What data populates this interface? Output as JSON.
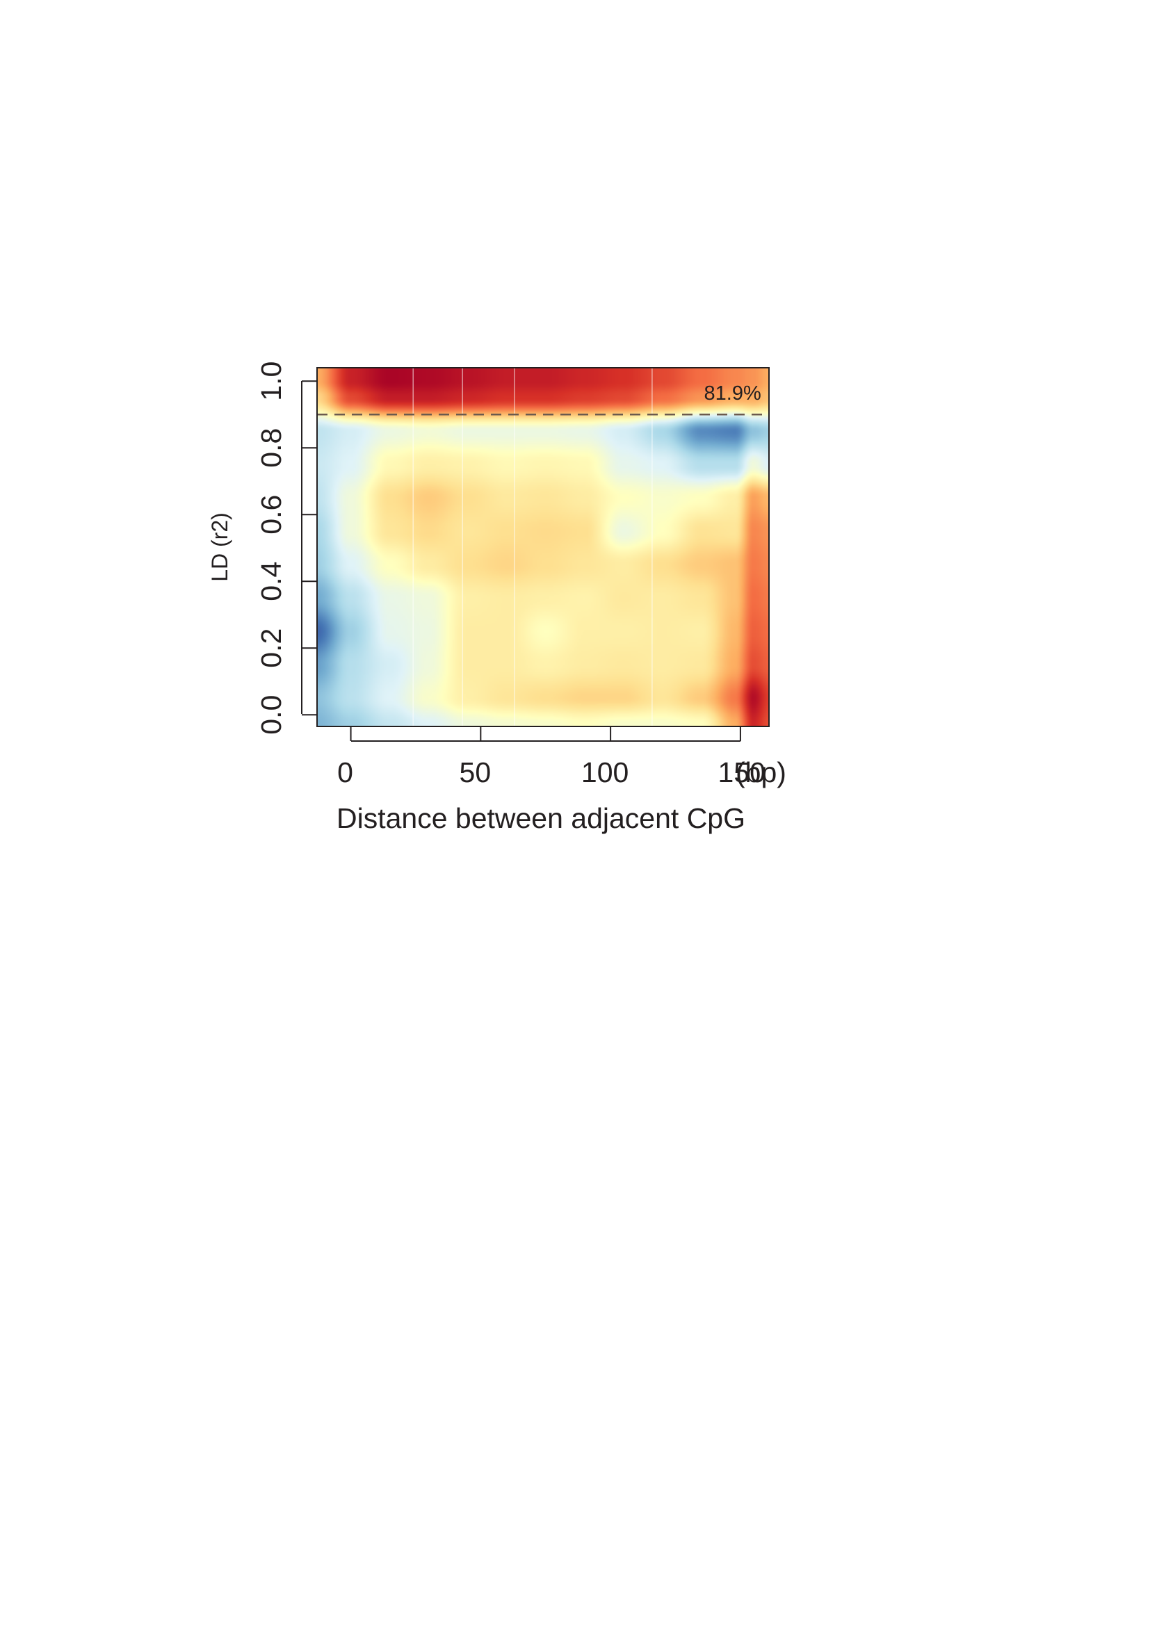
{
  "chart_data": {
    "type": "heatmap",
    "title": "",
    "xlabel": "Distance between adjacent CpG",
    "ylabel": "LD (r2)",
    "x_unit_label": "(bp)",
    "xlim": [
      -13,
      161
    ],
    "ylim": [
      -0.035,
      1.04
    ],
    "x_ticks": [
      0,
      50,
      100,
      150
    ],
    "x_tick_labels": [
      "0",
      "50",
      "100",
      "150"
    ],
    "y_ticks": [
      0.0,
      0.2,
      0.4,
      0.6,
      0.8,
      1.0
    ],
    "y_tick_labels": [
      "0.0",
      "0.2",
      "0.4",
      "0.6",
      "0.8",
      "1.0"
    ],
    "threshold_line": {
      "y": 0.9,
      "style": "dashed",
      "color": "#6b5a4e"
    },
    "annotation": {
      "text": "81.9%",
      "x": 158,
      "y": 0.965
    },
    "vertical_gridlines_x": [
      24,
      43,
      63,
      116
    ],
    "grid": false,
    "colorscale": [
      "#313695",
      "#4575b4",
      "#74add1",
      "#abd9e9",
      "#e0f3f8",
      "#ffffbf",
      "#fee090",
      "#fdae61",
      "#f46d43",
      "#d73027",
      "#a50026"
    ],
    "colorscale_note": "density, low (blue) to high (red); no colorbar shown",
    "density_grid": {
      "x": [
        -13,
        0,
        15,
        30,
        45,
        60,
        75,
        90,
        105,
        120,
        135,
        148,
        155,
        161
      ],
      "y": [
        -0.03,
        0.05,
        0.15,
        0.25,
        0.35,
        0.45,
        0.55,
        0.65,
        0.75,
        0.85,
        0.95,
        1.0
      ],
      "z": [
        [
          0.22,
          0.28,
          0.35,
          0.4,
          0.45,
          0.47,
          0.48,
          0.5,
          0.48,
          0.48,
          0.5,
          0.7,
          0.92,
          0.85
        ],
        [
          0.25,
          0.33,
          0.4,
          0.48,
          0.55,
          0.58,
          0.6,
          0.62,
          0.62,
          0.58,
          0.64,
          0.78,
          0.97,
          0.88
        ],
        [
          0.18,
          0.32,
          0.38,
          0.45,
          0.56,
          0.56,
          0.54,
          0.56,
          0.57,
          0.56,
          0.57,
          0.7,
          0.85,
          0.82
        ],
        [
          0.08,
          0.28,
          0.42,
          0.44,
          0.56,
          0.56,
          0.5,
          0.55,
          0.55,
          0.56,
          0.55,
          0.68,
          0.82,
          0.8
        ],
        [
          0.2,
          0.33,
          0.43,
          0.45,
          0.55,
          0.56,
          0.55,
          0.54,
          0.57,
          0.56,
          0.58,
          0.66,
          0.8,
          0.78
        ],
        [
          0.28,
          0.4,
          0.5,
          0.56,
          0.6,
          0.62,
          0.6,
          0.58,
          0.56,
          0.6,
          0.64,
          0.66,
          0.78,
          0.76
        ],
        [
          0.3,
          0.45,
          0.58,
          0.61,
          0.58,
          0.6,
          0.61,
          0.6,
          0.44,
          0.5,
          0.59,
          0.58,
          0.76,
          0.74
        ],
        [
          0.34,
          0.45,
          0.6,
          0.64,
          0.6,
          0.57,
          0.58,
          0.56,
          0.5,
          0.48,
          0.5,
          0.55,
          0.72,
          0.68
        ],
        [
          0.36,
          0.4,
          0.52,
          0.55,
          0.54,
          0.52,
          0.53,
          0.52,
          0.42,
          0.4,
          0.32,
          0.32,
          0.45,
          0.4
        ],
        [
          0.34,
          0.38,
          0.44,
          0.46,
          0.44,
          0.44,
          0.44,
          0.43,
          0.38,
          0.3,
          0.14,
          0.12,
          0.25,
          0.28
        ],
        [
          0.62,
          0.86,
          0.94,
          0.94,
          0.92,
          0.9,
          0.9,
          0.88,
          0.86,
          0.8,
          0.74,
          0.7,
          0.7,
          0.66
        ],
        [
          0.7,
          0.93,
          0.99,
          0.98,
          0.96,
          0.94,
          0.94,
          0.92,
          0.9,
          0.86,
          0.8,
          0.76,
          0.74,
          0.7
        ]
      ]
    }
  }
}
